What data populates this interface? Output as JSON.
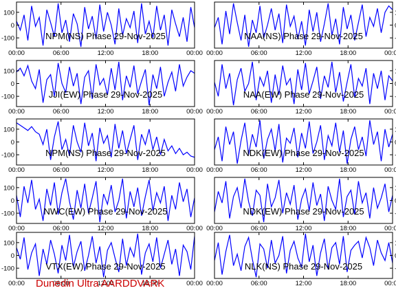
{
  "footer_text": "Dunedin Ultra AARDDVARK",
  "colors": {
    "trace": "#0000ff",
    "frame": "#000000",
    "background": "#ffffff",
    "footer": "#cc0000"
  },
  "chart_data": [
    {
      "type": "line",
      "title": "NPM(NS) Phase 29-Nov-2025",
      "ylim": [
        -180,
        180
      ],
      "yticks": [
        100,
        0,
        -100
      ],
      "xlim": [
        0,
        24
      ],
      "xticks": [
        "00:00",
        "06:00",
        "12:00",
        "18:00",
        "00:00"
      ],
      "series": [
        {
          "values": [
            30,
            -40,
            80,
            -120,
            150,
            -10,
            60,
            -160,
            120,
            20,
            -90,
            170,
            -60,
            40,
            -130,
            90,
            10,
            -170,
            140,
            -30,
            70,
            -110,
            160,
            -50,
            100,
            0,
            -150,
            130,
            -80,
            50,
            -20,
            110,
            -140,
            170,
            -70,
            30,
            -100,
            150,
            -40,
            80,
            -160,
            120,
            10,
            -90,
            60,
            -130,
            140,
            -20
          ]
        }
      ]
    },
    {
      "type": "line",
      "title": "NAA(NS) Phase 29-Nov-2025",
      "ylim": [
        -180,
        180
      ],
      "yticks": [
        100,
        0,
        -100
      ],
      "xlim": [
        0,
        24
      ],
      "xticks": [
        "00:00",
        "06:00",
        "12:00",
        "18:00",
        "00:00"
      ],
      "series": [
        {
          "values": [
            -20,
            60,
            -150,
            110,
            -70,
            170,
            20,
            -120,
            80,
            -170,
            40,
            -60,
            150,
            -100,
            0,
            130,
            -40,
            90,
            -140,
            160,
            -10,
            70,
            -110,
            30,
            -160,
            120,
            -50,
            100,
            -130,
            10,
            170,
            -80,
            50,
            -150,
            140,
            -30,
            80,
            -120,
            20,
            160,
            -90,
            60,
            -10,
            130,
            -60,
            100,
            150,
            120
          ]
        }
      ]
    },
    {
      "type": "line",
      "title": "JJI(EW) Phase 29-Nov-2025",
      "ylim": [
        -180,
        180
      ],
      "yticks": [
        100,
        0,
        -100
      ],
      "xlim": [
        0,
        24
      ],
      "xticks": [
        "00:00",
        "06:00",
        "12:00",
        "18:00",
        "00:00"
      ],
      "series": [
        {
          "values": [
            90,
            120,
            60,
            140,
            20,
            -40,
            110,
            -150,
            30,
            70,
            -100,
            160,
            0,
            -70,
            130,
            -20,
            80,
            -160,
            50,
            100,
            -120,
            150,
            -10,
            40,
            -90,
            120,
            -50,
            170,
            -130,
            60,
            -30,
            140,
            -80,
            20,
            110,
            -170,
            70,
            -40,
            130,
            -100,
            10,
            90,
            -60,
            150,
            -20,
            50,
            100,
            80
          ]
        }
      ]
    },
    {
      "type": "line",
      "title": "NAA(EW) Phase 29-Nov-2025",
      "ylim": [
        -180,
        180
      ],
      "yticks": [
        100,
        0,
        -100
      ],
      "xlim": [
        0,
        24
      ],
      "xticks": [
        "00:00",
        "06:00",
        "12:00",
        "18:00",
        "00:00"
      ],
      "series": [
        {
          "values": [
            10,
            -100,
            150,
            -40,
            80,
            -170,
            30,
            120,
            -60,
            0,
            170,
            -130,
            50,
            -20,
            100,
            -150,
            70,
            -90,
            140,
            -10,
            40,
            -160,
            110,
            -50,
            160,
            -80,
            20,
            130,
            -120,
            60,
            -30,
            170,
            -70,
            90,
            -140,
            10,
            150,
            -110,
            40,
            -20,
            120,
            -160,
            80,
            -40,
            100,
            -130,
            60,
            20
          ]
        }
      ]
    },
    {
      "type": "line",
      "title": "NPM(NS) Phase 29-Nov-2025",
      "ylim": [
        -180,
        180
      ],
      "yticks": [
        100,
        0,
        -100
      ],
      "xlim": [
        0,
        24
      ],
      "xticks": [
        "00:00",
        "06:00",
        "12:00",
        "18:00",
        "00:00"
      ],
      "series": [
        {
          "values": [
            150,
            130,
            110,
            90,
            120,
            80,
            60,
            -20,
            100,
            -140,
            40,
            160,
            -60,
            20,
            -110,
            130,
            0,
            -80,
            150,
            -30,
            70,
            -150,
            110,
            -10,
            50,
            -120,
            140,
            -50,
            90,
            -90,
            20,
            130,
            -140,
            60,
            -20,
            100,
            -60,
            40,
            -100,
            20,
            -70,
            -30,
            -90,
            -50,
            -100,
            -80,
            -110,
            -120
          ]
        }
      ]
    },
    {
      "type": "line",
      "title": "NDK(EW) Phase 29-Nov-2025",
      "ylim": [
        -180,
        180
      ],
      "yticks": [
        100,
        0,
        -100
      ],
      "xlim": [
        0,
        24
      ],
      "xticks": [
        "00:00",
        "06:00",
        "12:00",
        "18:00",
        "00:00"
      ],
      "series": [
        {
          "values": [
            -60,
            40,
            -150,
            120,
            -20,
            80,
            -170,
            10,
            150,
            -100,
            60,
            -40,
            170,
            -130,
            20,
            100,
            -70,
            140,
            -160,
            30,
            -10,
            110,
            -120,
            70,
            -50,
            160,
            -90,
            0,
            130,
            -140,
            50,
            -30,
            150,
            -80,
            90,
            -170,
            20,
            120,
            -60,
            40,
            -110,
            170,
            -20,
            80,
            -150,
            100,
            -40,
            60
          ]
        }
      ]
    },
    {
      "type": "line",
      "title": "NWC(EW) Phase 29-Nov-2025",
      "ylim": [
        -180,
        180
      ],
      "yticks": [
        100,
        0,
        -100
      ],
      "xlim": [
        0,
        24
      ],
      "xticks": [
        "00:00",
        "06:00",
        "12:00",
        "18:00",
        "00:00"
      ],
      "series": [
        {
          "values": [
            40,
            -130,
            110,
            -20,
            160,
            -70,
            10,
            -160,
            90,
            -40,
            140,
            -110,
            60,
            170,
            -10,
            -150,
            80,
            -60,
            130,
            -100,
            20,
            150,
            -170,
            50,
            -30,
            120,
            -90,
            0,
            170,
            -140,
            70,
            -50,
            100,
            -120,
            30,
            160,
            -80,
            60,
            -20,
            110,
            -160,
            40,
            -70,
            140,
            -10,
            90,
            -130,
            20
          ]
        }
      ]
    },
    {
      "type": "line",
      "title": "NDK(EW) Phase 29-Nov-2025",
      "ylim": [
        -180,
        180
      ],
      "yticks": [
        100,
        0,
        -100
      ],
      "xlim": [
        0,
        24
      ],
      "xticks": [
        "00:00",
        "06:00",
        "12:00",
        "18:00",
        "00:00"
      ],
      "series": [
        {
          "values": [
            -90,
            70,
            -20,
            150,
            -140,
            30,
            100,
            -60,
            170,
            -10,
            -120,
            80,
            40,
            -170,
            130,
            -50,
            20,
            160,
            -100,
            60,
            -30,
            120,
            -150,
            10,
            90,
            -80,
            140,
            -40,
            50,
            -160,
            110,
            0,
            -70,
            170,
            -130,
            30,
            80,
            -110,
            150,
            -20,
            60,
            -140,
            100,
            -60,
            20,
            130,
            -90,
            40
          ]
        }
      ]
    },
    {
      "type": "line",
      "title": "VTX(EW) Phase 29-Nov-2025",
      "ylim": [
        -180,
        180
      ],
      "yticks": [
        100,
        0,
        -100
      ],
      "xlim": [
        0,
        24
      ],
      "xticks": [
        "00:00",
        "06:00",
        "12:00",
        "18:00",
        "00:00"
      ],
      "series": [
        {
          "values": [
            60,
            -30,
            140,
            -110,
            20,
            90,
            -160,
            50,
            -70,
            120,
            10,
            -140,
            80,
            -40,
            160,
            -90,
            30,
            110,
            -120,
            0,
            150,
            -60,
            70,
            -170,
            40,
            100,
            -20,
            -130,
            130,
            -80,
            60,
            -10,
            170,
            -150,
            20,
            90,
            -50,
            140,
            -100,
            10,
            120,
            -70,
            50,
            -160,
            80,
            30,
            -110,
            150
          ]
        }
      ]
    },
    {
      "type": "line",
      "title": "NLK(NS) Phase 29-Nov-2025",
      "ylim": [
        -180,
        180
      ],
      "yticks": [
        100,
        0,
        -100
      ],
      "xlim": [
        0,
        24
      ],
      "xticks": [
        "00:00",
        "06:00",
        "12:00",
        "18:00",
        "00:00"
      ],
      "series": [
        {
          "values": [
            -40,
            100,
            -150,
            30,
            160,
            -80,
            10,
            -120,
            70,
            140,
            -30,
            -170,
            90,
            50,
            -100,
            120,
            -60,
            0,
            150,
            -140,
            40,
            110,
            -20,
            -90,
            170,
            -50,
            80,
            -160,
            20,
            130,
            -110,
            60,
            100,
            -70,
            150,
            -130,
            40,
            80,
            110,
            -20,
            140,
            60,
            -80,
            120,
            20,
            -40,
            100,
            -60
          ]
        }
      ]
    }
  ]
}
